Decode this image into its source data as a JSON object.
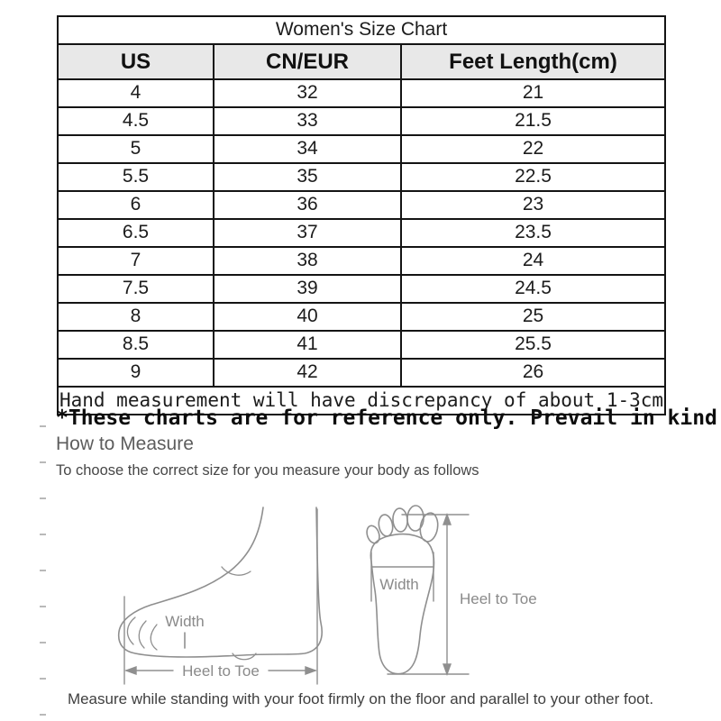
{
  "table": {
    "title": "Women's Size Chart",
    "columns": [
      "US",
      "CN/EUR",
      "Feet Length(cm)"
    ],
    "rows": [
      [
        "4",
        "32",
        "21"
      ],
      [
        "4.5",
        "33",
        "21.5"
      ],
      [
        "5",
        "34",
        "22"
      ],
      [
        "5.5",
        "35",
        "22.5"
      ],
      [
        "6",
        "36",
        "23"
      ],
      [
        "6.5",
        "37",
        "23.5"
      ],
      [
        "7",
        "38",
        "24"
      ],
      [
        "7.5",
        "39",
        "24.5"
      ],
      [
        "8",
        "40",
        "25"
      ],
      [
        "8.5",
        "41",
        "25.5"
      ],
      [
        "9",
        "42",
        "26"
      ]
    ],
    "footnote": "Hand measurement will have discrepancy of about 1-3cm"
  },
  "notes": {
    "reference": "*These charts are for reference only. Prevail in kind"
  },
  "how_to_measure": {
    "heading": "How to Measure",
    "subheading": "To choose the correct size for you measure your body as follows",
    "side_view": {
      "width_label": "Width",
      "length_label": "Heel to Toe"
    },
    "sole_view": {
      "width_label": "Width",
      "length_label": "Heel to Toe"
    },
    "caption": "Measure while standing with your foot firmly on the floor and parallel to your other foot."
  },
  "colors": {
    "header_bg": "#e8e8e8",
    "table_border": "#141414",
    "diagram_stroke": "#8f8f8f",
    "diagram_label": "#8a8a8a"
  }
}
